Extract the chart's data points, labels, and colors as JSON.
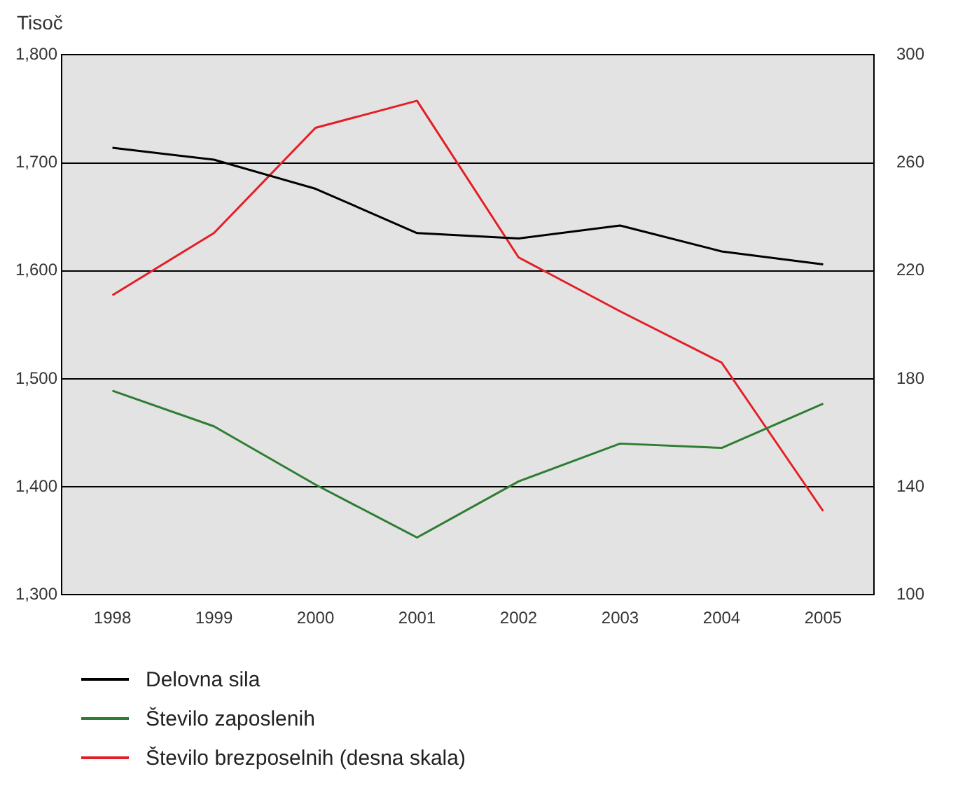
{
  "chart_data": {
    "type": "line",
    "ylabel": "Tisoč",
    "categories": [
      "1998",
      "1999",
      "2000",
      "2001",
      "2002",
      "2003",
      "2004",
      "2005"
    ],
    "series": [
      {
        "name": "Delovna sila",
        "color": "#000000",
        "values": [
          1714,
          1703,
          1676,
          1635,
          1630,
          1642,
          1618,
          1606
        ]
      },
      {
        "name": "Število zaposlenih",
        "color": "#2e7d32",
        "values": [
          1489,
          1456,
          1402,
          1353,
          1405,
          1440,
          1436,
          1477
        ]
      },
      {
        "name": "Število brezposelnih (desna skala)",
        "color": "#e41e26",
        "axis": "y2",
        "values": [
          211,
          234,
          273,
          283,
          225,
          205,
          186,
          131
        ]
      }
    ],
    "ylim": [
      1300,
      1800
    ],
    "yticks": [
      {
        "value": 1300,
        "label": "1,300"
      },
      {
        "value": 1400,
        "label": "1,400"
      },
      {
        "value": 1500,
        "label": "1,500"
      },
      {
        "value": 1600,
        "label": "1,600"
      },
      {
        "value": 1700,
        "label": "1,700"
      },
      {
        "value": 1800,
        "label": "1,800"
      }
    ],
    "y2lim": [
      100,
      300
    ],
    "y2ticks": [
      100,
      140,
      180,
      220,
      260,
      300
    ],
    "grid": "y",
    "legend": "bottom",
    "marker": "none",
    "line_style": "solid"
  }
}
